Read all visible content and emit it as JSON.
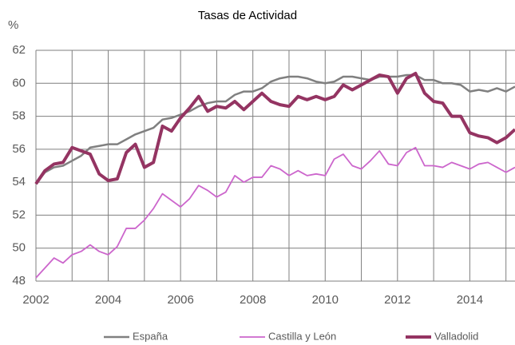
{
  "chart_data": {
    "type": "line",
    "title": "Tasas de Actividad",
    "y_label": "%",
    "x": [
      2002,
      2002.25,
      2002.5,
      2002.75,
      2003,
      2003.25,
      2003.5,
      2003.75,
      2004,
      2004.25,
      2004.5,
      2004.75,
      2005,
      2005.25,
      2005.5,
      2005.75,
      2006,
      2006.25,
      2006.5,
      2006.75,
      2007,
      2007.25,
      2007.5,
      2007.75,
      2008,
      2008.25,
      2008.5,
      2008.75,
      2009,
      2009.25,
      2009.5,
      2009.75,
      2010,
      2010.25,
      2010.5,
      2010.75,
      2011,
      2011.25,
      2011.5,
      2011.75,
      2012,
      2012.25,
      2012.5,
      2012.75,
      2013,
      2013.25,
      2013.5,
      2013.75,
      2014,
      2014.25,
      2014.5,
      2014.75,
      2015,
      2015.25
    ],
    "series": [
      {
        "name": "España",
        "color": "#808080",
        "values": [
          53.9,
          54.6,
          54.9,
          55.0,
          55.3,
          55.6,
          56.1,
          56.2,
          56.3,
          56.3,
          56.6,
          56.9,
          57.1,
          57.3,
          57.8,
          57.9,
          58.1,
          58.3,
          58.6,
          58.8,
          58.9,
          58.9,
          59.3,
          59.5,
          59.5,
          59.7,
          60.1,
          60.3,
          60.4,
          60.4,
          60.3,
          60.1,
          60.0,
          60.1,
          60.4,
          60.4,
          60.3,
          60.2,
          60.4,
          60.4,
          60.4,
          60.5,
          60.5,
          60.2,
          60.2,
          60.0,
          60.0,
          59.9,
          59.5,
          59.6,
          59.5,
          59.7,
          59.5,
          59.8
        ]
      },
      {
        "name": "Castilla y León",
        "color": "#cc66cc",
        "values": [
          48.2,
          48.8,
          49.4,
          49.1,
          49.6,
          49.8,
          50.2,
          49.8,
          49.6,
          50.1,
          51.2,
          51.2,
          51.7,
          52.4,
          53.3,
          52.9,
          52.5,
          53.0,
          53.8,
          53.5,
          53.1,
          53.4,
          54.4,
          54.0,
          54.3,
          54.3,
          55.0,
          54.8,
          54.4,
          54.7,
          54.4,
          54.5,
          54.4,
          55.4,
          55.7,
          55.0,
          54.8,
          55.3,
          55.9,
          55.1,
          55.0,
          55.8,
          56.1,
          55.0,
          55.0,
          54.9,
          55.2,
          55.0,
          54.8,
          55.1,
          55.2,
          54.9,
          54.6,
          54.9
        ]
      },
      {
        "name": "Valladolid",
        "color": "#943462",
        "values": [
          53.9,
          54.7,
          55.1,
          55.2,
          56.1,
          55.9,
          55.7,
          54.5,
          54.1,
          54.2,
          55.8,
          56.3,
          54.9,
          55.2,
          57.4,
          57.1,
          57.9,
          58.5,
          59.2,
          58.3,
          58.6,
          58.5,
          58.9,
          58.4,
          58.9,
          59.4,
          58.9,
          58.7,
          58.6,
          59.2,
          59.0,
          59.2,
          59.0,
          59.2,
          59.9,
          59.6,
          59.9,
          60.2,
          60.5,
          60.4,
          59.4,
          60.3,
          60.6,
          59.4,
          58.9,
          58.8,
          58.0,
          58.0,
          57.0,
          56.8,
          56.7,
          56.4,
          56.7,
          57.2
        ]
      }
    ],
    "xlim": [
      2002,
      2015.25
    ],
    "xticks": [
      2002,
      2004,
      2006,
      2008,
      2010,
      2012,
      2014
    ],
    "xgrid": [
      2003,
      2004,
      2005,
      2006,
      2007,
      2008,
      2009,
      2010,
      2011,
      2012,
      2013,
      2014,
      2015
    ],
    "ylim": [
      48,
      62
    ],
    "yticks": [
      48,
      50,
      52,
      54,
      56,
      58,
      60,
      62
    ],
    "grid": true,
    "legend": "bottom"
  }
}
